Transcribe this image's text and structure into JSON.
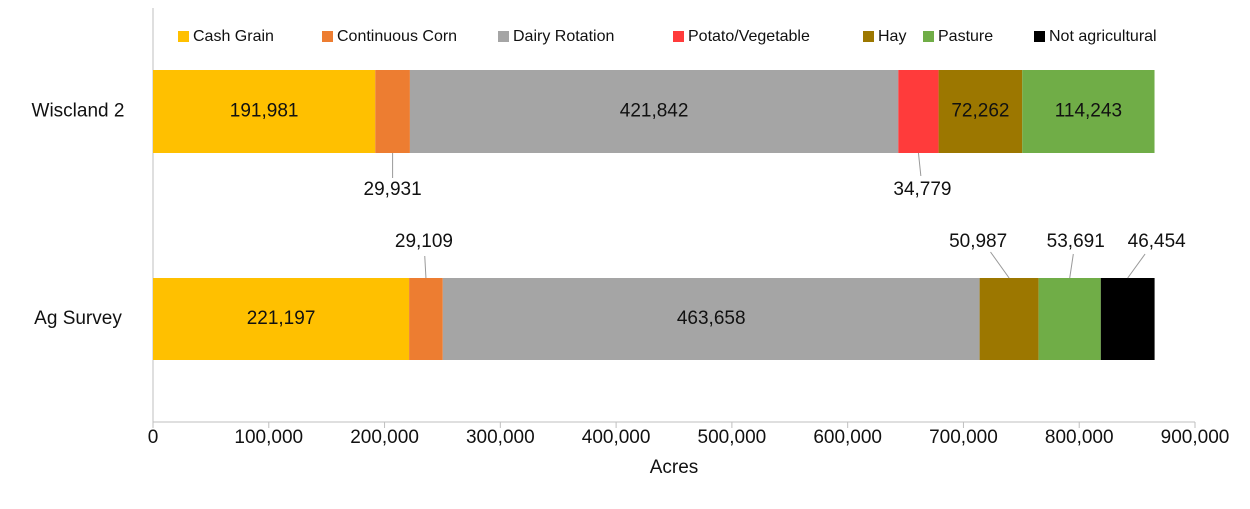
{
  "chart_data": {
    "type": "stacked_barh",
    "categories": [
      "Wiscland 2",
      "Ag Survey"
    ],
    "series": [
      {
        "name": "Cash Grain",
        "color": "#ffc000",
        "values": [
          191981,
          221197
        ],
        "value_labels": [
          "191,981",
          "221,197"
        ]
      },
      {
        "name": "Continuous Corn",
        "color": "#ed7d31",
        "values": [
          29931,
          29109
        ],
        "value_labels": [
          "29,931",
          "29,109"
        ]
      },
      {
        "name": "Dairy Rotation",
        "color": "#a5a5a5",
        "values": [
          421842,
          463658
        ],
        "value_labels": [
          "421,842",
          "463,658"
        ]
      },
      {
        "name": "Potato/Vegetable",
        "color": "#ff3b3b",
        "values": [
          34779,
          null
        ],
        "value_labels": [
          "34,779",
          null
        ]
      },
      {
        "name": "Hay",
        "color": "#9c7700",
        "values": [
          72262,
          50987
        ],
        "value_labels": [
          "72,262",
          "50,987"
        ]
      },
      {
        "name": "Pasture",
        "color": "#70ad47",
        "values": [
          114243,
          53691
        ],
        "value_labels": [
          "114,243",
          "53,691"
        ]
      },
      {
        "name": "Not agricultural",
        "color": "#000000",
        "values": [
          null,
          46454
        ],
        "value_labels": [
          null,
          "46,454"
        ]
      }
    ],
    "xlabel": "Acres",
    "xlim": [
      0,
      900000
    ],
    "xticks": [
      0,
      {
        "value": 100000,
        "label": "100,000"
      },
      {
        "value": 200000,
        "label": "200,000"
      },
      {
        "value": 300000,
        "label": "300,000"
      },
      {
        "value": 400000,
        "label": "400,000"
      },
      {
        "value": 500000,
        "label": "500,000"
      },
      {
        "value": 600000,
        "label": "600,000"
      },
      {
        "value": 700000,
        "label": "700,000"
      },
      {
        "value": 800000,
        "label": "800,000"
      },
      {
        "value": 900000,
        "label": "900,000"
      }
    ],
    "legend": "top"
  }
}
